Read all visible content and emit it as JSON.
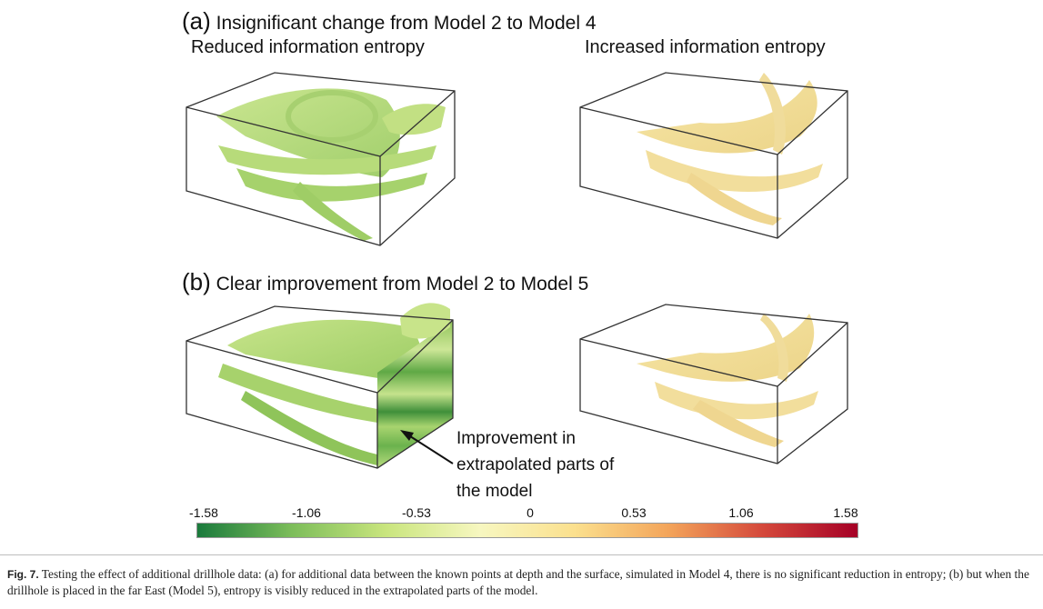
{
  "panel_a": {
    "letter": "(a)",
    "title": "Insignificant change from Model 2 to Model 4",
    "left_label": "Reduced information entropy",
    "right_label": "Increased information entropy"
  },
  "panel_b": {
    "letter": "(b)",
    "title": "Clear improvement from Model 2 to Model 5"
  },
  "annotation": {
    "line1": "Improvement in",
    "line2": "extrapolated parts of",
    "line3": "the model"
  },
  "colorbar": {
    "ticks": [
      "-1.58",
      "-1.06",
      "-0.53",
      "0",
      "0.53",
      "1.06",
      "1.58"
    ],
    "colors": [
      "#1a7a3c",
      "#7cbd5a",
      "#c9e57e",
      "#f7f7c0",
      "#fbe08e",
      "#f3a45a",
      "#d4483b",
      "#a50026"
    ]
  },
  "caption": {
    "label": "Fig. 7.",
    "text": " Testing the effect of additional drillhole data: (a) for additional data between the known points at depth and the surface, simulated in Model 4, there is no significant reduction in entropy; (b) but when the drillhole is placed in the far East (Model 5), entropy is visibly reduced in the extrapolated parts of the model."
  }
}
